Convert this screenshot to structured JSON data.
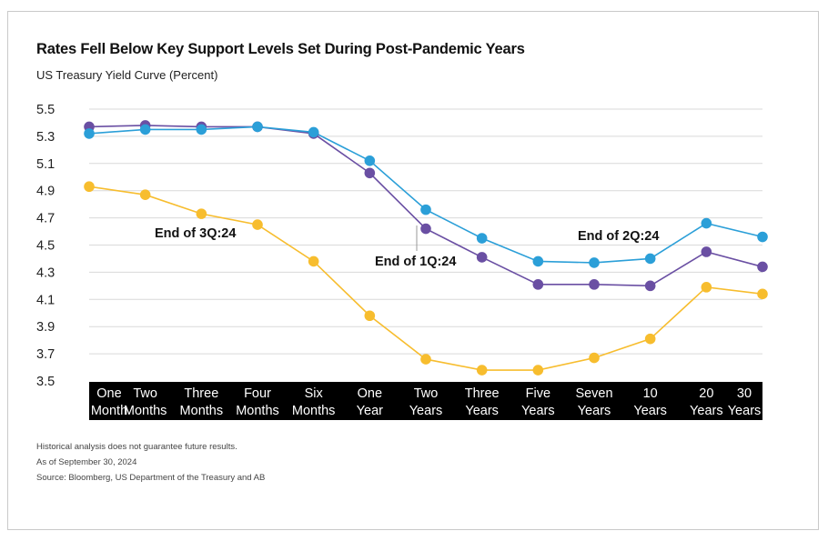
{
  "title": "Rates Fell Below Key Support Levels Set During Post-Pandemic Years",
  "subtitle": "US Treasury Yield Curve (Percent)",
  "notes": [
    "Historical analysis does not guarantee future results.",
    "As of September 30, 2024",
    "Source: Bloomberg, US Department of the Treasury and AB"
  ],
  "chart_data": {
    "type": "line",
    "title": "Rates Fell Below Key Support Levels Set During Post-Pandemic Years",
    "ylabel": "US Treasury Yield Curve (Percent)",
    "ylim": [
      3.5,
      5.5
    ],
    "yticks": [
      3.5,
      3.7,
      3.9,
      4.1,
      4.3,
      4.5,
      4.7,
      4.9,
      5.1,
      5.3,
      5.5
    ],
    "grid": true,
    "categories": [
      [
        "One",
        "Month"
      ],
      [
        "Two",
        "Months"
      ],
      [
        "Three",
        "Months"
      ],
      [
        "Four",
        "Months"
      ],
      [
        "Six",
        "Months"
      ],
      [
        "One",
        "Year"
      ],
      [
        "Two",
        "Years"
      ],
      [
        "Three",
        "Years"
      ],
      [
        "Five",
        "Years"
      ],
      [
        "Seven",
        "Years"
      ],
      [
        "10",
        "Years"
      ],
      [
        "20",
        "Years"
      ],
      [
        "30",
        "Years"
      ]
    ],
    "series": [
      {
        "name": "End of 1Q:24",
        "color": "#6a4fa3",
        "values": [
          5.37,
          5.38,
          5.37,
          5.37,
          5.32,
          5.03,
          4.62,
          4.41,
          4.21,
          4.21,
          4.2,
          4.45,
          4.34
        ]
      },
      {
        "name": "End of 2Q:24",
        "color": "#2b9fd8",
        "values": [
          5.32,
          5.35,
          5.35,
          5.37,
          5.33,
          5.12,
          4.76,
          4.55,
          4.38,
          4.37,
          4.4,
          4.66,
          4.56
        ]
      },
      {
        "name": "End of 3Q:24",
        "color": "#f7bd2e",
        "values": [
          4.93,
          4.87,
          4.73,
          4.65,
          4.38,
          3.98,
          3.66,
          3.58,
          3.58,
          3.67,
          3.81,
          4.19,
          4.14
        ]
      }
    ]
  }
}
